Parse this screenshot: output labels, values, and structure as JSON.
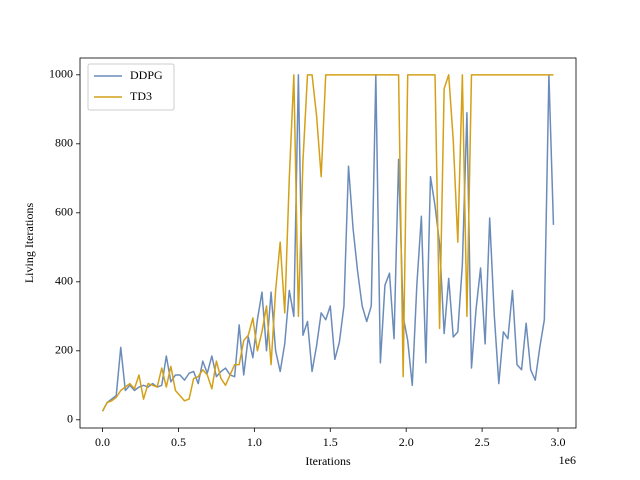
{
  "chart_data": {
    "type": "line",
    "xlabel": "Iterations",
    "ylabel": "Living Iterations",
    "x_offset_label": "1e6",
    "x": [
      0,
      30000,
      60000,
      90000,
      120000,
      150000,
      180000,
      210000,
      240000,
      270000,
      300000,
      330000,
      360000,
      390000,
      420000,
      450000,
      480000,
      510000,
      540000,
      570000,
      600000,
      630000,
      660000,
      690000,
      720000,
      750000,
      780000,
      810000,
      840000,
      870000,
      900000,
      930000,
      960000,
      990000,
      1020000,
      1050000,
      1080000,
      1110000,
      1140000,
      1170000,
      1200000,
      1230000,
      1260000,
      1290000,
      1320000,
      1350000,
      1380000,
      1410000,
      1440000,
      1470000,
      1500000,
      1530000,
      1560000,
      1590000,
      1620000,
      1650000,
      1680000,
      1710000,
      1740000,
      1770000,
      1800000,
      1830000,
      1860000,
      1890000,
      1920000,
      1950000,
      1980000,
      2010000,
      2040000,
      2070000,
      2100000,
      2130000,
      2160000,
      2190000,
      2220000,
      2250000,
      2280000,
      2310000,
      2340000,
      2370000,
      2400000,
      2430000,
      2460000,
      2490000,
      2520000,
      2550000,
      2580000,
      2610000,
      2640000,
      2670000,
      2700000,
      2730000,
      2760000,
      2790000,
      2820000,
      2850000,
      2880000,
      2910000,
      2940000,
      2970000
    ],
    "series": [
      {
        "name": "DDPG",
        "color": "#6b8cba",
        "values": [
          25,
          50,
          60,
          70,
          210,
          85,
          100,
          85,
          95,
          100,
          95,
          105,
          95,
          100,
          185,
          110,
          130,
          130,
          115,
          135,
          140,
          105,
          170,
          135,
          185,
          125,
          140,
          150,
          130,
          125,
          275,
          130,
          240,
          180,
          290,
          370,
          200,
          370,
          200,
          140,
          220,
          375,
          300,
          1000,
          245,
          285,
          140,
          215,
          310,
          290,
          330,
          175,
          225,
          330,
          735,
          555,
          430,
          330,
          285,
          330,
          1000,
          165,
          390,
          425,
          235,
          755,
          300,
          230,
          100,
          390,
          590,
          165,
          705,
          620,
          510,
          250,
          410,
          240,
          255,
          450,
          890,
          150,
          320,
          440,
          220,
          585,
          305,
          105,
          255,
          235,
          375,
          160,
          145,
          280,
          145,
          115,
          210,
          290,
          1000,
          565
        ]
      },
      {
        "name": "TD3",
        "color": "#d4a017",
        "values": [
          25,
          50,
          55,
          65,
          85,
          95,
          105,
          90,
          130,
          60,
          105,
          100,
          95,
          150,
          95,
          155,
          85,
          70,
          55,
          60,
          120,
          125,
          145,
          130,
          90,
          170,
          120,
          100,
          130,
          160,
          160,
          230,
          245,
          295,
          200,
          255,
          330,
          160,
          375,
          515,
          310,
          700,
          1000,
          300,
          750,
          1000,
          1000,
          880,
          705,
          1000,
          1000,
          1000,
          1000,
          1000,
          1000,
          1000,
          1000,
          1000,
          1000,
          1000,
          1000,
          1000,
          1000,
          1000,
          1000,
          1000,
          125,
          1000,
          1000,
          1000,
          1000,
          1000,
          1000,
          1000,
          265,
          960,
          1000,
          810,
          515,
          1000,
          300,
          1000,
          1000,
          1000,
          1000,
          1000,
          1000,
          1000,
          1000,
          1000,
          1000,
          1000,
          1000,
          1000,
          1000,
          1000,
          1000,
          1000,
          1000,
          1000
        ]
      }
    ],
    "xlim": [
      -148500,
      3118500
    ],
    "ylim": [
      -23.75,
      1048.75
    ],
    "xticks": [
      {
        "value": 0,
        "label": "0.0"
      },
      {
        "value": 500000,
        "label": "0.5"
      },
      {
        "value": 1000000,
        "label": "1.0"
      },
      {
        "value": 1500000,
        "label": "1.5"
      },
      {
        "value": 2000000,
        "label": "2.0"
      },
      {
        "value": 2500000,
        "label": "2.5"
      },
      {
        "value": 3000000,
        "label": "3.0"
      }
    ],
    "yticks": [
      0,
      200,
      400,
      600,
      800,
      1000
    ],
    "legend": "upper left",
    "grid": false
  }
}
